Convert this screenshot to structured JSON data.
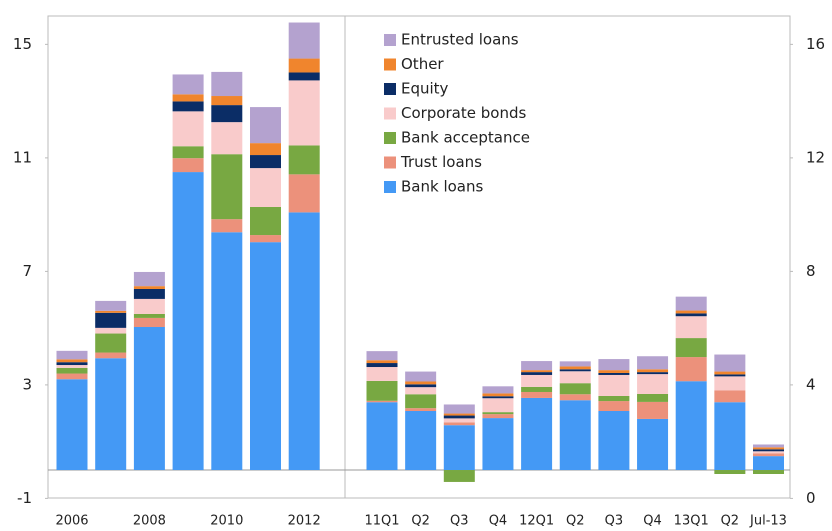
{
  "chart_data": {
    "type": "stacked_bar",
    "categories": [
      "2006",
      null,
      "2008",
      null,
      "2010",
      null,
      "2012",
      "11Q1",
      "Q2",
      "Q3",
      "Q4",
      "12Q1",
      "Q2",
      "Q3",
      "Q4",
      "13Q1",
      "Q2",
      "Jul-13"
    ],
    "series": [
      {
        "name": "Bank loans",
        "color": "#4499f5",
        "values": [
          3.2,
          3.94,
          5.04,
          10.5,
          8.38,
          8.03,
          9.08,
          2.39,
          2.08,
          1.58,
          1.83,
          2.54,
          2.46,
          2.08,
          1.8,
          3.13,
          2.39,
          0.49
        ]
      },
      {
        "name": "Trust loans",
        "color": "#ec917b",
        "values": [
          0.2,
          0.2,
          0.32,
          0.49,
          0.46,
          0.25,
          1.34,
          0.05,
          0.1,
          0.1,
          0.14,
          0.21,
          0.21,
          0.35,
          0.6,
          0.85,
          0.42,
          0.1
        ]
      },
      {
        "name": "Bank acceptance",
        "color": "#78a842",
        "values": [
          0.2,
          0.67,
          0.14,
          0.42,
          2.29,
          0.99,
          1.02,
          0.7,
          0.49,
          -0.42,
          0.07,
          0.18,
          0.39,
          0.18,
          0.28,
          0.67,
          -0.14,
          -0.14
        ]
      },
      {
        "name": "Corporate bonds",
        "color": "#f9cbcb",
        "values": [
          0.1,
          0.2,
          0.53,
          1.23,
          1.13,
          1.37,
          2.29,
          0.49,
          0.25,
          0.14,
          0.49,
          0.42,
          0.42,
          0.74,
          0.7,
          0.77,
          0.49,
          0.07
        ]
      },
      {
        "name": "Equity",
        "color": "#0b2d66",
        "values": [
          0.1,
          0.53,
          0.35,
          0.35,
          0.6,
          0.46,
          0.28,
          0.14,
          0.1,
          0.1,
          0.07,
          0.1,
          0.07,
          0.07,
          0.07,
          0.1,
          0.07,
          0.07
        ]
      },
      {
        "name": "Other",
        "color": "#f0852d",
        "values": [
          0.1,
          0.07,
          0.1,
          0.25,
          0.32,
          0.42,
          0.49,
          0.1,
          0.1,
          0.07,
          0.1,
          0.07,
          0.1,
          0.1,
          0.1,
          0.1,
          0.1,
          0.07
        ]
      },
      {
        "name": "Entrusted loans",
        "color": "#b4a2cf",
        "values": [
          0.3,
          0.35,
          0.5,
          0.7,
          0.85,
          1.27,
          1.27,
          0.32,
          0.35,
          0.32,
          0.25,
          0.32,
          0.18,
          0.39,
          0.46,
          0.49,
          0.6,
          0.1
        ]
      }
    ],
    "ylim": [
      -1,
      16
    ],
    "yticks": [
      -1,
      3,
      7,
      11,
      15
    ],
    "y2lim": [
      0,
      17
    ],
    "y2ticks": [
      0,
      4,
      8,
      12,
      16
    ]
  }
}
